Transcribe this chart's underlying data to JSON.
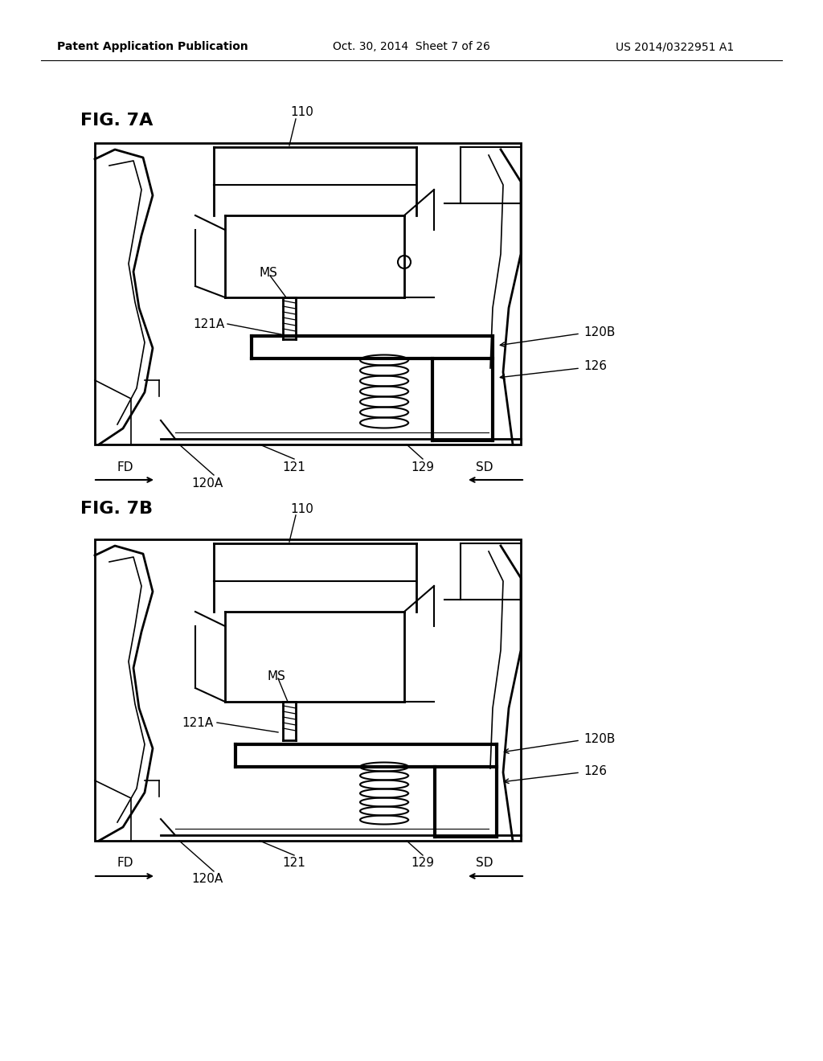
{
  "bg_color": "#ffffff",
  "header_left": "Patent Application Publication",
  "header_center": "Oct. 30, 2014  Sheet 7 of 26",
  "header_right": "US 2014/0322951 A1",
  "fig7a_label": "FIG. 7A",
  "fig7b_label": "FIG. 7B",
  "label_110_a": "110",
  "label_110_b": "110",
  "label_ms_a": "MS",
  "label_ms_b": "MS",
  "label_121a_a": "121A",
  "label_121a_b": "121A",
  "label_120b_a": "120B",
  "label_120b_b": "120B",
  "label_126_a": "126",
  "label_126_b": "126",
  "label_fd_a": "FD",
  "label_sd_a": "SD",
  "label_fd_b": "FD",
  "label_sd_b": "SD",
  "label_120a_a": "120A",
  "label_120a_b": "120A",
  "label_121_a": "121",
  "label_121_b": "121",
  "label_129_a": "129",
  "label_129_b": "129",
  "line_color": "#000000",
  "text_color": "#000000"
}
